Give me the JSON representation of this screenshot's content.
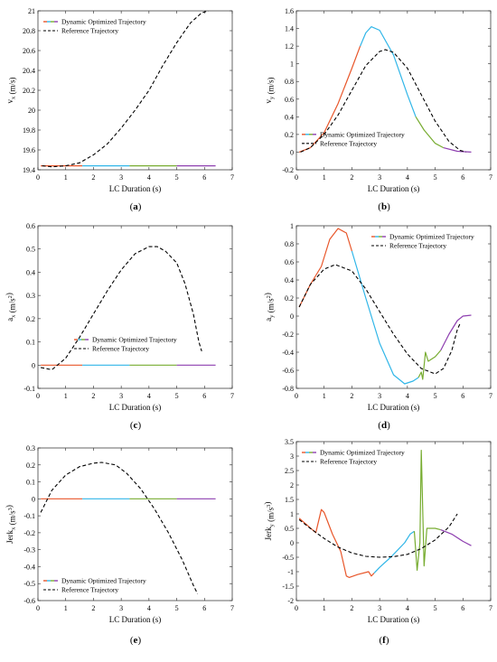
{
  "series_names": {
    "optimized": "Dynamic Optimized Trajectory",
    "reference": "Reference Trajectory"
  },
  "colors": {
    "seg1": "#e8562a",
    "seg2": "#30b6e8",
    "seg3": "#77ac30",
    "seg4": "#8e3fb0",
    "reference": "#000000",
    "axis": "#262626"
  },
  "chart_data": [
    {
      "id": "a",
      "type": "line",
      "sublabel": "(a)",
      "xlabel": "LC Duration (s)",
      "ylabel": "v_x (m/s)",
      "xlim": [
        0,
        7
      ],
      "ylim": [
        19.4,
        21
      ],
      "xticks": [
        "0",
        "1",
        "2",
        "3",
        "4",
        "5",
        "6",
        "7"
      ],
      "yticks": [
        "19.4",
        "19.6",
        "19.8",
        "20",
        "20.2",
        "20.4",
        "20.6",
        "20.8",
        "21"
      ],
      "legend_position": "top-left",
      "segments": [
        {
          "color_key": "seg1",
          "points": [
            [
              0.1,
              19.44
            ],
            [
              1.6,
              19.44
            ]
          ]
        },
        {
          "color_key": "seg2",
          "points": [
            [
              1.6,
              19.44
            ],
            [
              3.3,
              19.44
            ]
          ]
        },
        {
          "color_key": "seg3",
          "points": [
            [
              3.3,
              19.44
            ],
            [
              5.0,
              19.44
            ]
          ]
        },
        {
          "color_key": "seg4",
          "points": [
            [
              5.0,
              19.44
            ],
            [
              6.4,
              19.44
            ]
          ]
        }
      ],
      "reference": [
        [
          0.15,
          19.44
        ],
        [
          0.5,
          19.43
        ],
        [
          1.0,
          19.44
        ],
        [
          1.5,
          19.47
        ],
        [
          2.0,
          19.55
        ],
        [
          2.5,
          19.66
        ],
        [
          3.0,
          19.82
        ],
        [
          3.5,
          20.0
        ],
        [
          4.0,
          20.2
        ],
        [
          4.5,
          20.45
        ],
        [
          5.0,
          20.68
        ],
        [
          5.5,
          20.88
        ],
        [
          5.9,
          20.98
        ],
        [
          6.15,
          21.0
        ]
      ]
    },
    {
      "id": "b",
      "type": "line",
      "sublabel": "(b)",
      "xlabel": "LC Duration (s)",
      "ylabel": "v_y (m/s)",
      "xlim": [
        0,
        7
      ],
      "ylim": [
        -0.2,
        1.6
      ],
      "xticks": [
        "0",
        "1",
        "2",
        "3",
        "4",
        "5",
        "6",
        "7"
      ],
      "yticks": [
        "-0.2",
        "0",
        "0.2",
        "0.4",
        "0.6",
        "0.8",
        "1",
        "1.2",
        "1.4",
        "1.6"
      ],
      "legend_position": "lower-left",
      "segments": [
        {
          "color_key": "seg1",
          "points": [
            [
              0.1,
              0.0
            ],
            [
              0.5,
              0.05
            ],
            [
              1.0,
              0.22
            ],
            [
              1.5,
              0.55
            ],
            [
              2.0,
              0.95
            ],
            [
              2.3,
              1.2
            ]
          ]
        },
        {
          "color_key": "seg2",
          "points": [
            [
              2.3,
              1.2
            ],
            [
              2.5,
              1.35
            ],
            [
              2.7,
              1.42
            ],
            [
              3.0,
              1.38
            ],
            [
              3.5,
              1.1
            ],
            [
              4.0,
              0.65
            ],
            [
              4.3,
              0.4
            ]
          ]
        },
        {
          "color_key": "seg3",
          "points": [
            [
              4.3,
              0.4
            ],
            [
              4.6,
              0.25
            ],
            [
              5.0,
              0.1
            ],
            [
              5.3,
              0.05
            ]
          ]
        },
        {
          "color_key": "seg4",
          "points": [
            [
              5.3,
              0.05
            ],
            [
              5.8,
              0.01
            ],
            [
              6.3,
              0.0
            ]
          ]
        }
      ],
      "reference": [
        [
          0.15,
          0.0
        ],
        [
          0.5,
          0.05
        ],
        [
          1.0,
          0.2
        ],
        [
          1.5,
          0.42
        ],
        [
          2.0,
          0.7
        ],
        [
          2.5,
          0.98
        ],
        [
          3.0,
          1.14
        ],
        [
          3.2,
          1.16
        ],
        [
          3.5,
          1.13
        ],
        [
          4.0,
          0.95
        ],
        [
          4.5,
          0.65
        ],
        [
          5.0,
          0.35
        ],
        [
          5.5,
          0.12
        ],
        [
          5.9,
          0.02
        ],
        [
          6.1,
          0.0
        ]
      ]
    },
    {
      "id": "c",
      "type": "line",
      "sublabel": "(c)",
      "xlabel": "LC Duration (s)",
      "ylabel": "a_x (m/s^2)",
      "xlim": [
        0,
        7
      ],
      "ylim": [
        -0.1,
        0.6
      ],
      "xticks": [
        "0",
        "1",
        "2",
        "3",
        "4",
        "5",
        "6",
        "7"
      ],
      "yticks": [
        "-0.1",
        "0",
        "0.1",
        "0.2",
        "0.3",
        "0.4",
        "0.5",
        "0.6"
      ],
      "legend_position": "bottom-center",
      "segments": [
        {
          "color_key": "seg1",
          "points": [
            [
              0.1,
              0.0
            ],
            [
              1.6,
              0.0
            ]
          ]
        },
        {
          "color_key": "seg2",
          "points": [
            [
              1.6,
              0.0
            ],
            [
              3.3,
              0.0
            ]
          ]
        },
        {
          "color_key": "seg3",
          "points": [
            [
              3.3,
              0.0
            ],
            [
              5.0,
              0.0
            ]
          ]
        },
        {
          "color_key": "seg4",
          "points": [
            [
              5.0,
              0.0
            ],
            [
              6.4,
              0.0
            ]
          ]
        }
      ],
      "reference": [
        [
          0.1,
          -0.01
        ],
        [
          0.5,
          -0.02
        ],
        [
          1.0,
          0.03
        ],
        [
          1.5,
          0.12
        ],
        [
          2.0,
          0.22
        ],
        [
          2.5,
          0.32
        ],
        [
          3.0,
          0.41
        ],
        [
          3.5,
          0.48
        ],
        [
          4.0,
          0.51
        ],
        [
          4.3,
          0.51
        ],
        [
          4.6,
          0.49
        ],
        [
          5.0,
          0.44
        ],
        [
          5.3,
          0.35
        ],
        [
          5.6,
          0.22
        ],
        [
          5.8,
          0.1
        ],
        [
          5.9,
          0.06
        ]
      ]
    },
    {
      "id": "d",
      "type": "line",
      "sublabel": "(d)",
      "xlabel": "LC Duration (s)",
      "ylabel": "a_y (m/s^2)",
      "xlim": [
        0,
        7
      ],
      "ylim": [
        -0.8,
        1
      ],
      "xticks": [
        "0",
        "1",
        "2",
        "3",
        "4",
        "5",
        "6",
        "7"
      ],
      "yticks": [
        "-0.8",
        "-0.6",
        "-0.4",
        "-0.2",
        "0",
        "0.2",
        "0.4",
        "0.6",
        "0.8",
        "1"
      ],
      "legend_position": "top-right",
      "segments": [
        {
          "color_key": "seg1",
          "points": [
            [
              0.1,
              0.1
            ],
            [
              0.5,
              0.35
            ],
            [
              0.9,
              0.55
            ],
            [
              1.2,
              0.85
            ],
            [
              1.5,
              0.97
            ],
            [
              1.8,
              0.92
            ],
            [
              2.0,
              0.72
            ]
          ]
        },
        {
          "color_key": "seg2",
          "points": [
            [
              2.0,
              0.72
            ],
            [
              2.5,
              0.2
            ],
            [
              3.0,
              -0.3
            ],
            [
              3.5,
              -0.65
            ],
            [
              3.9,
              -0.75
            ],
            [
              4.2,
              -0.72
            ],
            [
              4.4,
              -0.68
            ]
          ]
        },
        {
          "color_key": "seg3",
          "points": [
            [
              4.4,
              -0.68
            ],
            [
              4.5,
              -0.62
            ],
            [
              4.55,
              -0.7
            ],
            [
              4.65,
              -0.4
            ],
            [
              4.75,
              -0.5
            ],
            [
              5.0,
              -0.45
            ],
            [
              5.2,
              -0.38
            ]
          ]
        },
        {
          "color_key": "seg4",
          "points": [
            [
              5.2,
              -0.38
            ],
            [
              5.5,
              -0.2
            ],
            [
              5.8,
              -0.05
            ],
            [
              6.0,
              0.0
            ],
            [
              6.3,
              0.01
            ]
          ]
        }
      ],
      "reference": [
        [
          0.1,
          0.1
        ],
        [
          0.5,
          0.35
        ],
        [
          1.0,
          0.52
        ],
        [
          1.4,
          0.57
        ],
        [
          2.0,
          0.5
        ],
        [
          2.5,
          0.3
        ],
        [
          3.0,
          0.05
        ],
        [
          3.5,
          -0.2
        ],
        [
          4.0,
          -0.42
        ],
        [
          4.5,
          -0.58
        ],
        [
          5.0,
          -0.64
        ],
        [
          5.3,
          -0.58
        ],
        [
          5.6,
          -0.38
        ],
        [
          5.8,
          -0.15
        ],
        [
          5.9,
          -0.08
        ]
      ]
    },
    {
      "id": "e",
      "type": "line",
      "sublabel": "(e)",
      "xlabel": "LC Duration (s)",
      "ylabel": "Jerk_x (m/s^3)",
      "xlim": [
        0,
        7
      ],
      "ylim": [
        -0.6,
        0.3
      ],
      "xticks": [
        "0",
        "1",
        "2",
        "3",
        "4",
        "5",
        "6",
        "7"
      ],
      "yticks": [
        "-0.6",
        "-0.5",
        "-0.4",
        "-0.3",
        "-0.2",
        "-0.1",
        "0",
        "0.1",
        "0.2",
        "0.3"
      ],
      "legend_position": "bottom-left",
      "segments": [
        {
          "color_key": "seg1",
          "points": [
            [
              0.1,
              0.0
            ],
            [
              1.6,
              0.0
            ]
          ]
        },
        {
          "color_key": "seg2",
          "points": [
            [
              1.6,
              0.0
            ],
            [
              3.3,
              0.0
            ]
          ]
        },
        {
          "color_key": "seg3",
          "points": [
            [
              3.3,
              0.0
            ],
            [
              5.0,
              0.0
            ]
          ]
        },
        {
          "color_key": "seg4",
          "points": [
            [
              5.0,
              0.0
            ],
            [
              6.4,
              0.0
            ]
          ]
        }
      ],
      "reference": [
        [
          0.1,
          -0.08
        ],
        [
          0.5,
          0.05
        ],
        [
          1.0,
          0.14
        ],
        [
          1.5,
          0.19
        ],
        [
          2.0,
          0.21
        ],
        [
          2.3,
          0.215
        ],
        [
          2.8,
          0.2
        ],
        [
          3.2,
          0.15
        ],
        [
          3.7,
          0.06
        ],
        [
          4.2,
          -0.06
        ],
        [
          4.7,
          -0.2
        ],
        [
          5.2,
          -0.36
        ],
        [
          5.6,
          -0.51
        ],
        [
          5.75,
          -0.56
        ]
      ]
    },
    {
      "id": "f",
      "type": "line",
      "sublabel": "(f)",
      "xlabel": "LC Duration (s)",
      "ylabel": "Jerk_y (m/s^3)",
      "xlim": [
        0,
        7
      ],
      "ylim": [
        -2,
        3.5
      ],
      "xticks": [
        "0",
        "1",
        "2",
        "3",
        "4",
        "5",
        "6",
        "7"
      ],
      "yticks": [
        "-2",
        "-1.5",
        "-1",
        "-0.5",
        "0",
        "0.5",
        "1",
        "1.5",
        "2",
        "2.5",
        "3",
        "3.5"
      ],
      "legend_position": "top-left",
      "segments": [
        {
          "color_key": "seg1",
          "points": [
            [
              0.1,
              0.85
            ],
            [
              0.4,
              0.6
            ],
            [
              0.7,
              0.35
            ],
            [
              0.9,
              1.15
            ],
            [
              1.0,
              1.05
            ],
            [
              1.3,
              0.3
            ],
            [
              1.6,
              -0.3
            ],
            [
              1.8,
              -1.15
            ],
            [
              1.9,
              -1.2
            ],
            [
              2.2,
              -1.1
            ],
            [
              2.6,
              -1.0
            ],
            [
              2.7,
              -1.15
            ],
            [
              2.8,
              -1.05
            ]
          ]
        },
        {
          "color_key": "seg2",
          "points": [
            [
              2.8,
              -1.05
            ],
            [
              3.0,
              -0.85
            ],
            [
              3.4,
              -0.5
            ],
            [
              3.7,
              -0.2
            ],
            [
              3.9,
              0.0
            ],
            [
              4.1,
              0.3
            ],
            [
              4.25,
              0.4
            ]
          ]
        },
        {
          "color_key": "seg3",
          "points": [
            [
              4.25,
              0.4
            ],
            [
              4.35,
              -0.95
            ],
            [
              4.45,
              0.0
            ],
            [
              4.5,
              3.2
            ],
            [
              4.6,
              -0.8
            ],
            [
              4.7,
              0.5
            ],
            [
              4.8,
              0.5
            ],
            [
              5.0,
              0.5
            ],
            [
              5.2,
              0.45
            ]
          ]
        },
        {
          "color_key": "seg4",
          "points": [
            [
              5.2,
              0.45
            ],
            [
              5.6,
              0.3
            ],
            [
              6.0,
              0.05
            ],
            [
              6.3,
              -0.1
            ]
          ]
        }
      ],
      "reference": [
        [
          0.1,
          0.8
        ],
        [
          0.5,
          0.5
        ],
        [
          1.0,
          0.15
        ],
        [
          1.5,
          -0.15
        ],
        [
          2.0,
          -0.35
        ],
        [
          2.5,
          -0.47
        ],
        [
          3.0,
          -0.5
        ],
        [
          3.5,
          -0.48
        ],
        [
          4.0,
          -0.4
        ],
        [
          4.5,
          -0.2
        ],
        [
          5.0,
          0.1
        ],
        [
          5.5,
          0.55
        ],
        [
          5.8,
          1.0
        ]
      ]
    }
  ]
}
